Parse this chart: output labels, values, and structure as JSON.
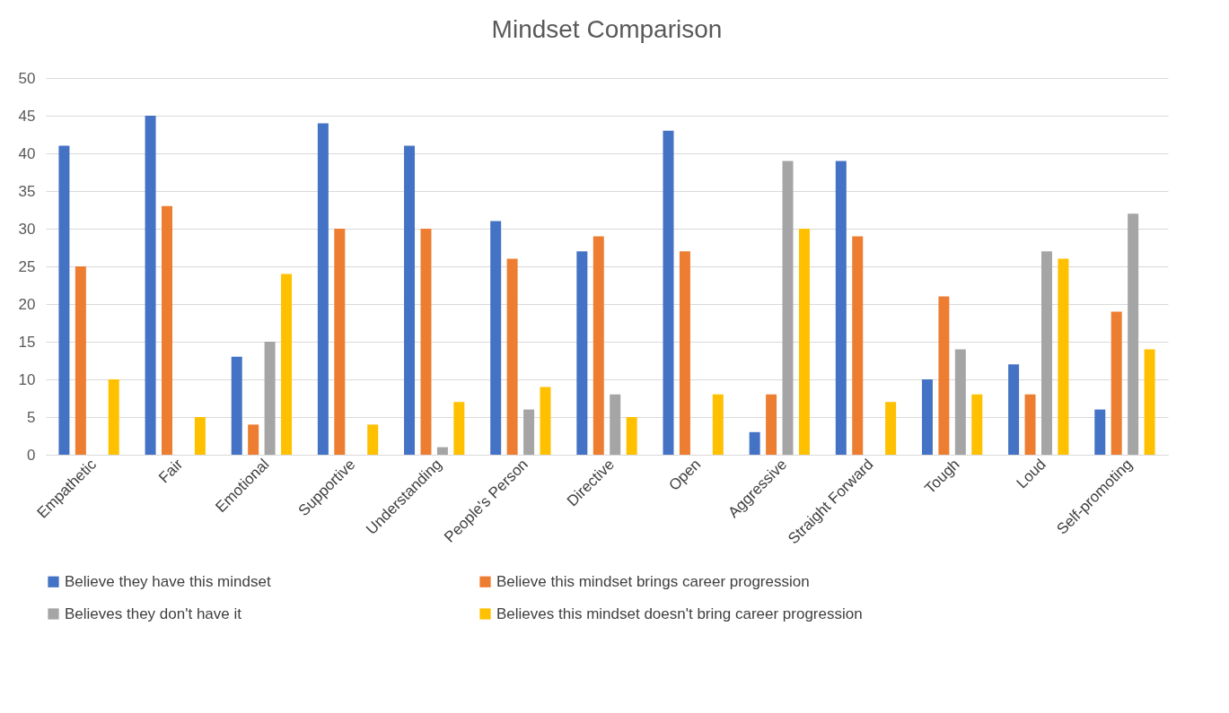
{
  "chart_data": {
    "type": "bar",
    "title": "Mindset Comparison",
    "categories": [
      "Empathetic",
      "Fair",
      "Emotional",
      "Supportive",
      "Understanding",
      "People's Person",
      "Directive",
      "Open",
      "Aggressive",
      "Straight Forward",
      "Tough",
      "Loud",
      "Self-promoting"
    ],
    "series": [
      {
        "name": "Believe they have this mindset",
        "color": "#4472c4",
        "values": [
          41,
          45,
          13,
          44,
          41,
          31,
          27,
          43,
          3,
          39,
          10,
          12,
          6
        ]
      },
      {
        "name": "Believe this mindset brings career progression",
        "color": "#ed7d31",
        "values": [
          25,
          33,
          4,
          30,
          30,
          26,
          29,
          27,
          8,
          29,
          21,
          8,
          19
        ]
      },
      {
        "name": "Believes they don't have it",
        "color": "#a5a5a5",
        "values": [
          0,
          0,
          15,
          0,
          1,
          6,
          8,
          0,
          39,
          0,
          14,
          27,
          32
        ]
      },
      {
        "name": "Believes this mindset doesn't bring career progression",
        "color": "#ffc000",
        "values": [
          10,
          5,
          24,
          4,
          7,
          9,
          5,
          8,
          30,
          7,
          8,
          26,
          14
        ]
      }
    ],
    "ylim": [
      0,
      50
    ],
    "yticks": [
      0,
      5,
      10,
      15,
      20,
      25,
      30,
      35,
      40,
      45,
      50
    ],
    "grid": "y",
    "legend": "bottom"
  }
}
